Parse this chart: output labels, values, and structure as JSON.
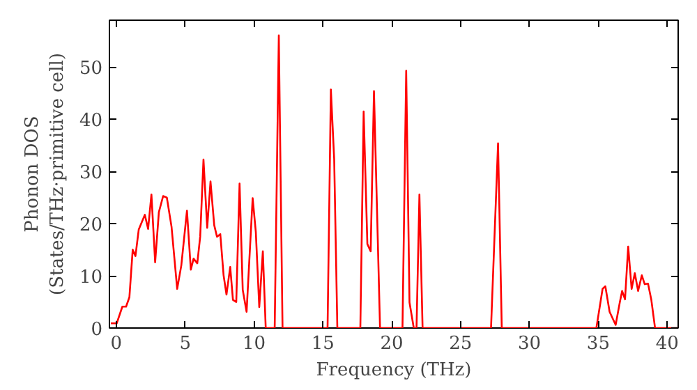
{
  "chart_data": {
    "type": "line",
    "xlabel": "Frequency (THz)",
    "ylabel": "Phonon DOS\n(States/THz·primitive cell)",
    "x": [
      -0.4,
      0.03,
      0.44,
      0.71,
      0.95,
      1.19,
      1.39,
      1.63,
      2.07,
      2.31,
      2.55,
      2.82,
      3.09,
      3.4,
      3.67,
      4.01,
      4.42,
      4.72,
      5.13,
      5.41,
      5.61,
      5.88,
      6.09,
      6.33,
      6.6,
      6.84,
      7.11,
      7.31,
      7.55,
      7.79,
      8.0,
      8.27,
      8.47,
      8.71,
      8.95,
      9.18,
      9.46,
      9.9,
      10.13,
      10.38,
      10.64,
      10.85,
      11.5,
      11.8,
      12.07,
      15.34,
      15.58,
      15.82,
      16.05,
      17.72,
      17.96,
      18.23,
      18.47,
      18.71,
      19.15,
      20.78,
      21.05,
      21.29,
      21.6,
      21.8,
      22.01,
      22.24,
      27.21,
      27.72,
      27.99,
      34.86,
      35.31,
      35.51,
      35.82,
      36.26,
      36.56,
      36.73,
      36.94,
      37.17,
      37.42,
      37.65,
      37.89,
      38.16,
      38.37,
      38.61,
      38.85,
      39.12,
      40.8
    ],
    "series": [
      {
        "color": "#ff0000",
        "values": [
          0.9,
          0.9,
          4.1,
          4.1,
          5.9,
          15.0,
          13.8,
          18.9,
          21.7,
          19.0,
          25.6,
          12.6,
          22.2,
          25.3,
          25.0,
          19.4,
          7.5,
          12.0,
          22.5,
          11.2,
          13.3,
          12.4,
          17.5,
          32.3,
          19.2,
          28.1,
          19.7,
          17.5,
          18.0,
          10.1,
          6.4,
          11.7,
          5.4,
          5.0,
          27.7,
          7.3,
          3.1,
          24.9,
          18.4,
          4.0,
          14.7,
          0,
          0,
          56.1,
          0,
          0,
          45.7,
          32.4,
          0,
          0,
          41.5,
          16.1,
          14.7,
          45.4,
          0,
          0,
          49.3,
          4.9,
          0,
          0,
          25.6,
          0,
          0,
          35.4,
          0,
          0,
          7.5,
          8.0,
          3.1,
          0.6,
          4.9,
          7.1,
          5.5,
          15.6,
          7.5,
          10.5,
          7.1,
          10.1,
          8.4,
          8.5,
          5.4,
          0,
          0
        ]
      }
    ],
    "xlim": [
      -0.5,
      40.8
    ],
    "ylim": [
      0,
      59
    ],
    "xticks": [
      0,
      5,
      10,
      15,
      20,
      25,
      30,
      35,
      40
    ],
    "yticks": [
      0,
      10,
      20,
      30,
      40,
      50
    ],
    "grid": false,
    "marker": "none",
    "line_style": "solid"
  }
}
